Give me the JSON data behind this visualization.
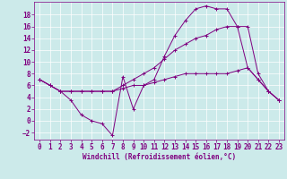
{
  "xlabel": "Windchill (Refroidissement éolien,°C)",
  "bg_color": "#cceaea",
  "line_color": "#800080",
  "grid_color": "#ffffff",
  "xlim": [
    -0.5,
    23.5
  ],
  "ylim": [
    -3.2,
    20.2
  ],
  "yticks": [
    -2,
    0,
    2,
    4,
    6,
    8,
    10,
    12,
    14,
    16,
    18
  ],
  "xticks": [
    0,
    1,
    2,
    3,
    4,
    5,
    6,
    7,
    8,
    9,
    10,
    11,
    12,
    13,
    14,
    15,
    16,
    17,
    18,
    19,
    20,
    21,
    22,
    23
  ],
  "line1_x": [
    0,
    1,
    2,
    3,
    4,
    5,
    6,
    7,
    8,
    9,
    10,
    11,
    12,
    13,
    14,
    15,
    16,
    17,
    18,
    19,
    20,
    21,
    22,
    23
  ],
  "line1_y": [
    7,
    6,
    5,
    3.5,
    1,
    0,
    -0.5,
    -2.5,
    7.5,
    2,
    6,
    7,
    11,
    14.5,
    17,
    19,
    19.5,
    19,
    19,
    16,
    9,
    7,
    5,
    3.5
  ],
  "line2_x": [
    0,
    1,
    2,
    3,
    4,
    5,
    6,
    7,
    8,
    9,
    10,
    11,
    12,
    13,
    14,
    15,
    16,
    17,
    18,
    19,
    20,
    21,
    22,
    23
  ],
  "line2_y": [
    7,
    6,
    5,
    5,
    5,
    5,
    5,
    5,
    5.5,
    6,
    6,
    6.5,
    7,
    7.5,
    8,
    8,
    8,
    8,
    8,
    8.5,
    9,
    7,
    5,
    3.5
  ],
  "line3_x": [
    0,
    1,
    2,
    3,
    4,
    5,
    6,
    7,
    8,
    9,
    10,
    11,
    12,
    13,
    14,
    15,
    16,
    17,
    18,
    19,
    20,
    21,
    22,
    23
  ],
  "line3_y": [
    7,
    6,
    5,
    5,
    5,
    5,
    5,
    5,
    6,
    7,
    8,
    9,
    10.5,
    12,
    13,
    14,
    14.5,
    15.5,
    16,
    16,
    16,
    8,
    5,
    3.5
  ],
  "tick_fontsize": 5.5,
  "xlabel_fontsize": 5.5,
  "linewidth": 0.7,
  "markersize": 2.5
}
